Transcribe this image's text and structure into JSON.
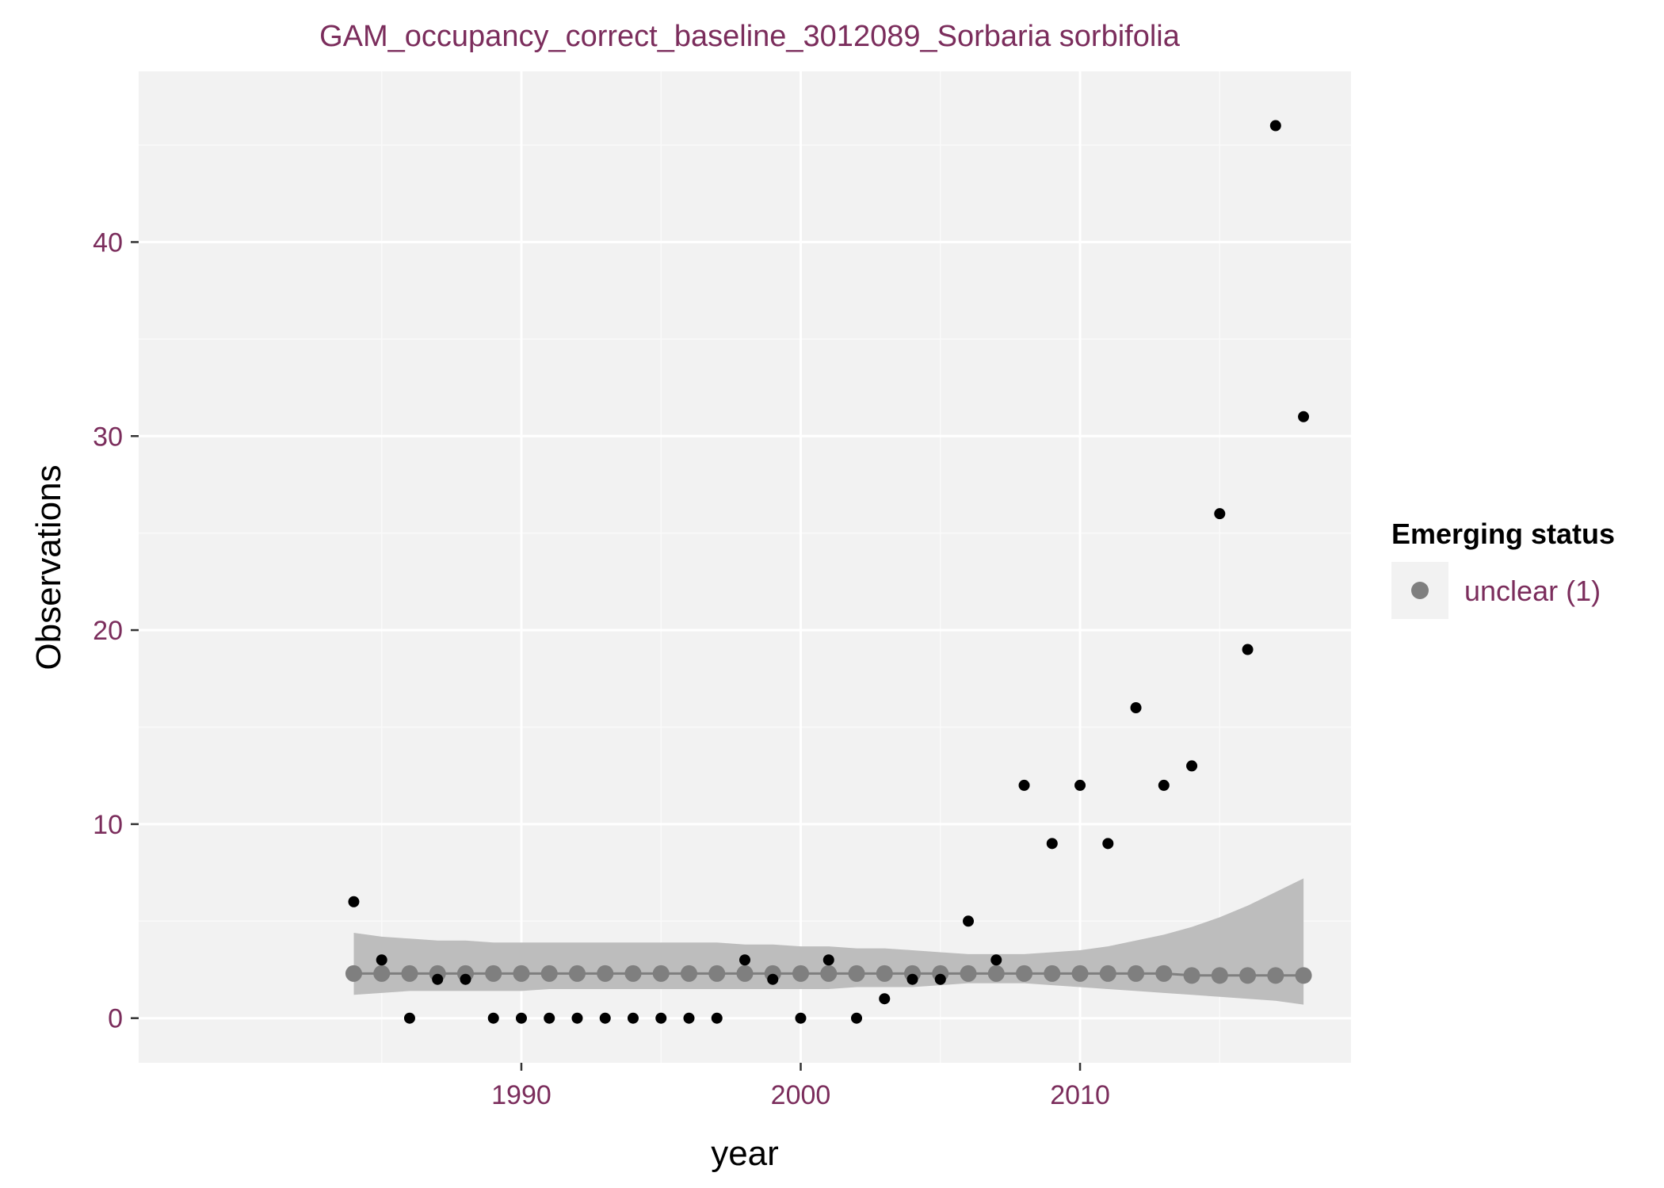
{
  "chart_data": {
    "type": "scatter",
    "title": "GAM_occupancy_correct_baseline_3012089_Sorbaria sorbifolia",
    "xlabel": "year",
    "ylabel": "Observations",
    "xlim": [
      1976.3,
      2019.7
    ],
    "ylim": [
      -2.3,
      48.8
    ],
    "x_ticks": [
      1990,
      2000,
      2010
    ],
    "y_ticks": [
      0,
      10,
      20,
      30,
      40
    ],
    "grid": true,
    "legend": {
      "title": "Emerging status",
      "placement": "right",
      "entries": [
        {
          "label": "unclear (1)",
          "color": "#7f7f7f"
        }
      ]
    },
    "series": [
      {
        "kind": "observed_points",
        "color": "#000000",
        "points": [
          [
            1984,
            6
          ],
          [
            1985,
            3
          ],
          [
            1986,
            0
          ],
          [
            1987,
            2
          ],
          [
            1988,
            2
          ],
          [
            1989,
            0
          ],
          [
            1990,
            0
          ],
          [
            1991,
            0
          ],
          [
            1992,
            0
          ],
          [
            1993,
            0
          ],
          [
            1994,
            0
          ],
          [
            1995,
            0
          ],
          [
            1996,
            0
          ],
          [
            1997,
            0
          ],
          [
            1998,
            3
          ],
          [
            1999,
            2
          ],
          [
            2000,
            0
          ],
          [
            2001,
            3
          ],
          [
            2002,
            0
          ],
          [
            2003,
            1
          ],
          [
            2004,
            2
          ],
          [
            2005,
            2
          ],
          [
            2006,
            5
          ],
          [
            2007,
            3
          ],
          [
            2008,
            12
          ],
          [
            2009,
            9
          ],
          [
            2010,
            12
          ],
          [
            2011,
            9
          ],
          [
            2012,
            16
          ],
          [
            2013,
            12
          ],
          [
            2014,
            13
          ],
          [
            2015,
            26
          ],
          [
            2016,
            19
          ],
          [
            2017,
            46
          ],
          [
            2018,
            31
          ]
        ]
      },
      {
        "kind": "gam_fit",
        "name": "unclear (1)",
        "color": "#7f7f7f",
        "band_color": "#bdbdbd",
        "x": [
          1984,
          1985,
          1986,
          1987,
          1988,
          1989,
          1990,
          1991,
          1992,
          1993,
          1994,
          1995,
          1996,
          1997,
          1998,
          1999,
          2000,
          2001,
          2002,
          2003,
          2004,
          2005,
          2006,
          2007,
          2008,
          2009,
          2010,
          2011,
          2012,
          2013,
          2014,
          2015,
          2016,
          2017,
          2018
        ],
        "fit": [
          2.3,
          2.3,
          2.3,
          2.3,
          2.3,
          2.3,
          2.3,
          2.3,
          2.3,
          2.3,
          2.3,
          2.3,
          2.3,
          2.3,
          2.3,
          2.3,
          2.3,
          2.3,
          2.3,
          2.3,
          2.3,
          2.3,
          2.3,
          2.3,
          2.3,
          2.3,
          2.3,
          2.3,
          2.3,
          2.3,
          2.2,
          2.2,
          2.2,
          2.2,
          2.2
        ],
        "lower": [
          1.2,
          1.3,
          1.4,
          1.4,
          1.4,
          1.4,
          1.4,
          1.5,
          1.5,
          1.5,
          1.5,
          1.5,
          1.5,
          1.5,
          1.5,
          1.5,
          1.5,
          1.5,
          1.6,
          1.6,
          1.6,
          1.7,
          1.8,
          1.8,
          1.8,
          1.7,
          1.6,
          1.5,
          1.4,
          1.3,
          1.2,
          1.1,
          1.0,
          0.9,
          0.7
        ],
        "upper": [
          4.4,
          4.2,
          4.1,
          4.0,
          4.0,
          3.9,
          3.9,
          3.9,
          3.9,
          3.9,
          3.9,
          3.9,
          3.9,
          3.9,
          3.8,
          3.8,
          3.7,
          3.7,
          3.6,
          3.6,
          3.5,
          3.4,
          3.3,
          3.3,
          3.3,
          3.4,
          3.5,
          3.7,
          4.0,
          4.3,
          4.7,
          5.2,
          5.8,
          6.5,
          7.2
        ]
      }
    ]
  }
}
